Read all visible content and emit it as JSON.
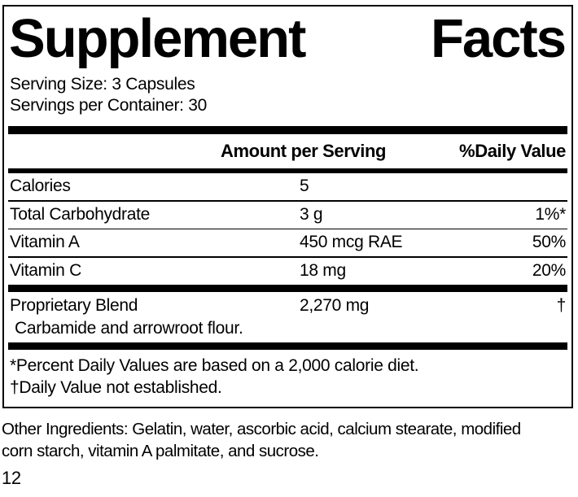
{
  "colors": {
    "text": "#000000",
    "background": "#ffffff",
    "rule": "#000000"
  },
  "label": {
    "title_left": "Supplement",
    "title_right": "Facts",
    "serving_size": "Serving Size: 3 Capsules",
    "servings_per_container": "Servings per Container: 30",
    "header": {
      "amount": "Amount per Serving",
      "daily_value": "%Daily Value"
    },
    "nutrients": [
      {
        "name": "Calories",
        "amount": "5",
        "daily_value": ""
      },
      {
        "name": "Total Carbohydrate",
        "amount": "3 g",
        "daily_value": "1%*"
      },
      {
        "name": "Vitamin A",
        "amount": "450 mcg RAE",
        "daily_value": "50%"
      },
      {
        "name": "Vitamin C",
        "amount": "18 mg",
        "daily_value": "20%"
      }
    ],
    "proprietary_blend": {
      "name": "Proprietary Blend",
      "amount": "2,270 mg",
      "daily_value": "†",
      "components": "Carbamide and arrowroot flour."
    },
    "footnotes": [
      "*Percent Daily Values are based on a 2,000 calorie diet.",
      "†Daily Value not established."
    ]
  },
  "other_ingredients_lines": [
    "Other Ingredients: Gelatin, water, ascorbic acid, calcium stearate, modified",
    "corn starch, vitamin A palmitate, and sucrose."
  ],
  "page_number": "12"
}
